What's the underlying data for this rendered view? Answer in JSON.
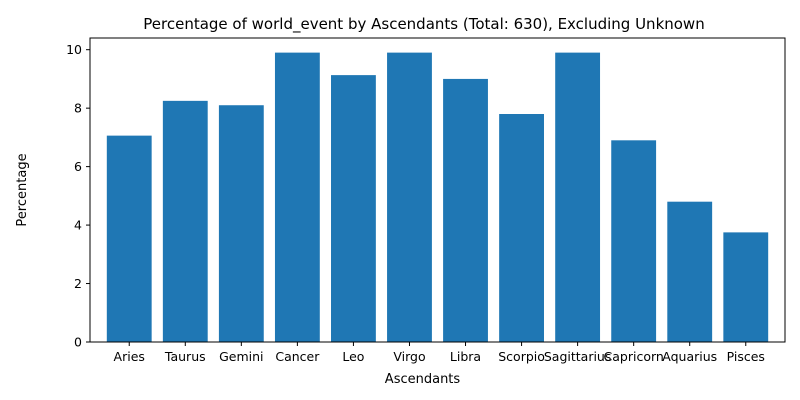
{
  "chart_data": {
    "type": "bar",
    "title": "Percentage of world_event by Ascendants (Total: 630), Excluding Unknown",
    "xlabel": "Ascendants",
    "ylabel": "Percentage",
    "categories": [
      "Aries",
      "Taurus",
      "Gemini",
      "Cancer",
      "Leo",
      "Virgo",
      "Libra",
      "Scorpio",
      "Sagittarius",
      "Capricorn",
      "Aquarius",
      "Pisces"
    ],
    "values": [
      7.06,
      8.25,
      8.1,
      9.9,
      9.13,
      9.9,
      9.0,
      7.8,
      9.9,
      6.9,
      4.8,
      3.75
    ],
    "ylim": [
      0,
      10.4
    ],
    "yticks": [
      0,
      2,
      4,
      6,
      8,
      10
    ],
    "bar_color": "#1f77b4",
    "grid": false,
    "legend": "none"
  }
}
